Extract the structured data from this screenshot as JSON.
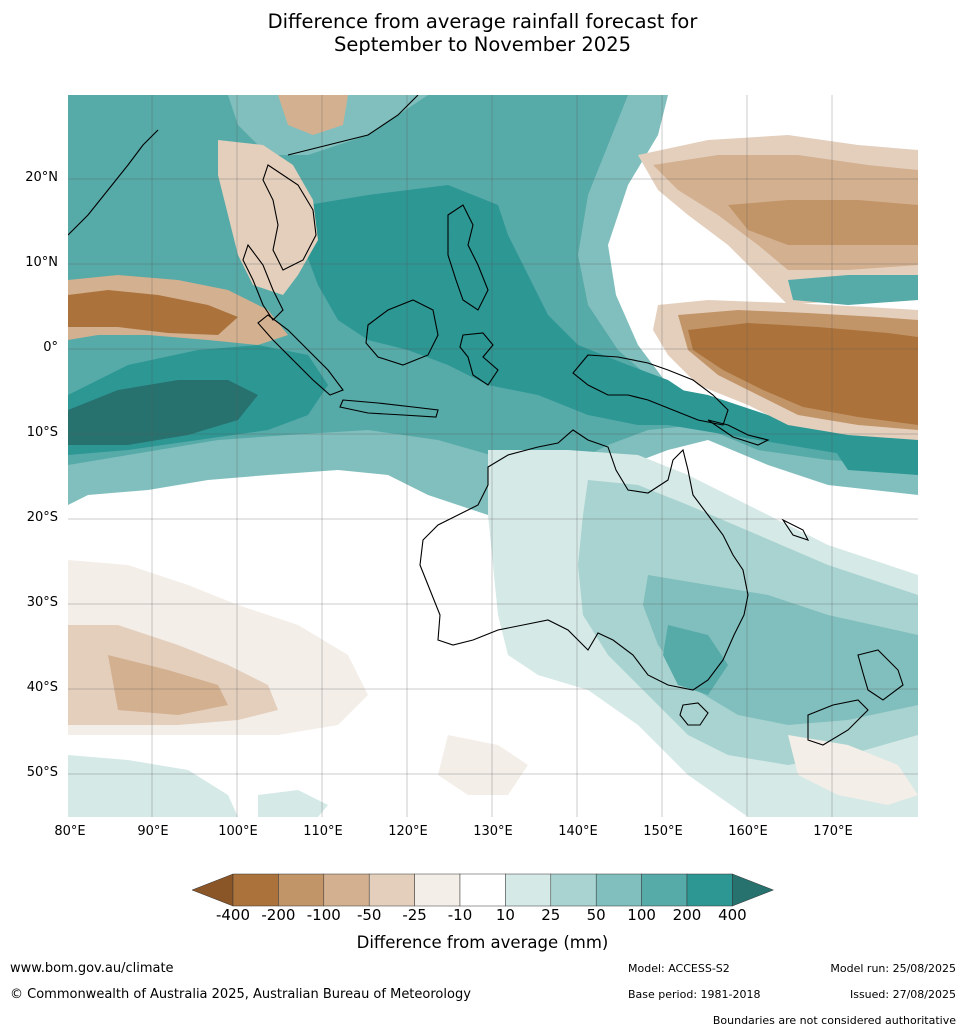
{
  "title_line1": "Difference from average rainfall forecast for",
  "title_line2": "September to November 2025",
  "lat_labels": [
    "20°N",
    "10°N",
    "0°",
    "10°S",
    "20°S",
    "30°S",
    "40°S",
    "50°S"
  ],
  "lon_labels": [
    "80°E",
    "90°E",
    "100°E",
    "110°E",
    "120°E",
    "130°E",
    "140°E",
    "150°E",
    "160°E",
    "170°E"
  ],
  "legend": {
    "title": "Difference from average (mm)",
    "ticks": [
      "-400",
      "-200",
      "-100",
      "-50",
      "-25",
      "-10",
      "10",
      "25",
      "50",
      "100",
      "200",
      "400"
    ],
    "colors": [
      "#8a5527",
      "#ab733b",
      "#c29569",
      "#d3b090",
      "#e4cfbd",
      "#f3eee8",
      "#ffffff",
      "#d5e9e7",
      "#a8d3d0",
      "#80bfbd",
      "#56aaa8",
      "#2d9794",
      "#27726f"
    ]
  },
  "footer": {
    "url": "www.bom.gov.au/climate",
    "copyright": "© Commonwealth of Australia 2025, Australian Bureau of Meteorology",
    "model": "Model: ACCESS-S2",
    "base_period": "Base period: 1981-2018",
    "model_run": "Model run: 25/08/2025",
    "issued": "Issued: 27/08/2025",
    "boundaries": "Boundaries are not considered authoritative"
  }
}
